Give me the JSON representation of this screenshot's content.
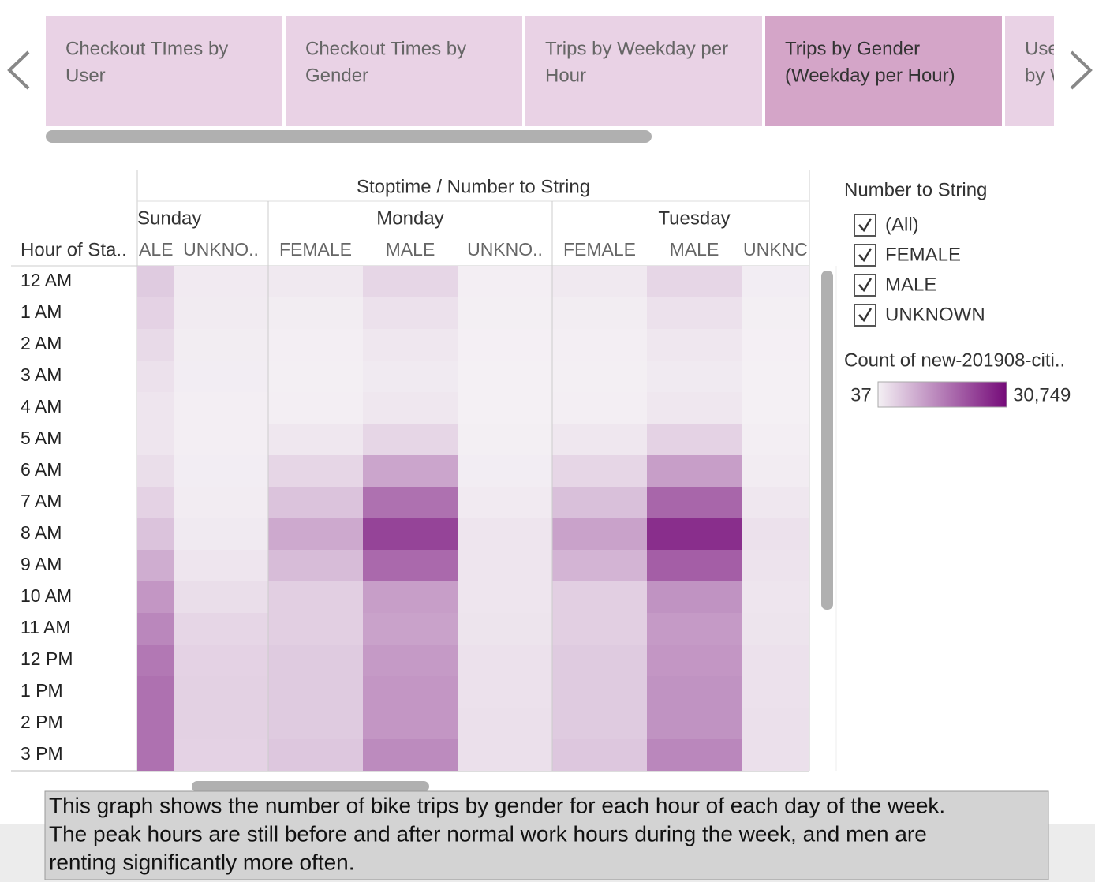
{
  "tabs": [
    [
      "Checkout TImes by",
      "User"
    ],
    [
      "Checkout Times by",
      "Gender"
    ],
    [
      "Trips by Weekday per",
      "Hour"
    ],
    [
      "Trips by Gender",
      "(Weekday per Hour)"
    ],
    [
      "Use",
      "by W"
    ]
  ],
  "active_tab": 3,
  "heatmap": {
    "column_title": "Stoptime / Number to String",
    "row_title": "Hour of Sta..",
    "days": [
      {
        "name": "Sunday",
        "columns": [
          "ALE",
          "UNKNO.."
        ]
      },
      {
        "name": "Monday",
        "columns": [
          "FEMALE",
          "MALE",
          "UNKNO.."
        ]
      },
      {
        "name": "Tuesday",
        "columns": [
          "FEMALE",
          "MALE",
          "UNKNC"
        ]
      }
    ],
    "rows": [
      "12 AM",
      "1 AM",
      "2 AM",
      "3 AM",
      "4 AM",
      "5 AM",
      "6 AM",
      "7 AM",
      "8 AM",
      "9 AM",
      "10 AM",
      "11 AM",
      "12 PM",
      "1 PM",
      "2 PM",
      "3 PM"
    ],
    "values": [
      [
        5000,
        800,
        1000,
        3500,
        300,
        1000,
        3500,
        400
      ],
      [
        4000,
        700,
        500,
        2000,
        200,
        500,
        2000,
        200
      ],
      [
        3000,
        500,
        300,
        1200,
        150,
        300,
        1200,
        150
      ],
      [
        2000,
        400,
        200,
        900,
        100,
        200,
        900,
        100
      ],
      [
        1500,
        300,
        300,
        1200,
        100,
        300,
        1200,
        100
      ],
      [
        1500,
        300,
        1200,
        3500,
        200,
        1200,
        4000,
        300
      ],
      [
        2500,
        400,
        3500,
        10000,
        400,
        3500,
        11000,
        600
      ],
      [
        4000,
        600,
        6000,
        17000,
        800,
        6500,
        18500,
        1200
      ],
      [
        6000,
        900,
        9500,
        23000,
        1500,
        10500,
        26000,
        2000
      ],
      [
        9000,
        1500,
        7000,
        18000,
        1500,
        8000,
        19500,
        1800
      ],
      [
        12000,
        2500,
        4500,
        11000,
        1500,
        4500,
        12500,
        1500
      ],
      [
        14000,
        3500,
        4500,
        10500,
        1700,
        4500,
        11500,
        1700
      ],
      [
        16000,
        4000,
        5000,
        11500,
        2000,
        5000,
        12000,
        2000
      ],
      [
        17000,
        4200,
        5000,
        12000,
        2000,
        5000,
        12500,
        2000
      ],
      [
        17000,
        4200,
        5000,
        12000,
        2200,
        5000,
        12500,
        2200
      ],
      [
        17000,
        4000,
        5500,
        13500,
        2200,
        5500,
        14000,
        2200
      ]
    ]
  },
  "filter": {
    "title": "Number to String",
    "items": [
      "(All)",
      "FEMALE",
      "MALE",
      "UNKNOWN"
    ]
  },
  "color_legend": {
    "title": "Count of new-201908-citi..",
    "min": 37,
    "max": {
      "value": 30749,
      "label": "30,749"
    },
    "low_color": "#f4f0f4",
    "high_color": "#750a79"
  },
  "description": [
    "This graph shows the number of bike trips by gender for each hour of each day of the week.",
    "The peak hours are still before and after normal work hours during the week, and men are",
    "renting significantly more often."
  ]
}
